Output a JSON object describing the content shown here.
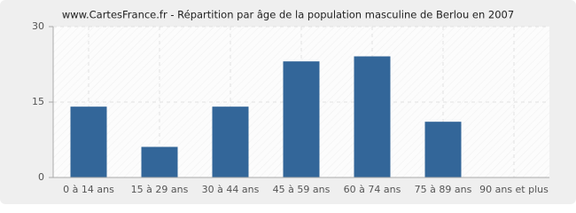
{
  "chart_data": {
    "type": "bar",
    "title": "www.CartesFrance.fr - Répartition par âge de la population masculine de Berlou en 2007",
    "categories": [
      "0 à 14 ans",
      "15 à 29 ans",
      "30 à 44 ans",
      "45 à 59 ans",
      "60 à 74 ans",
      "75 à 89 ans",
      "90 ans et plus"
    ],
    "values": [
      14,
      6,
      14,
      23,
      24,
      11,
      0
    ],
    "color": "#336699",
    "ylim": [
      0,
      30
    ],
    "yticks": [
      0,
      15,
      30
    ],
    "grid": true
  }
}
